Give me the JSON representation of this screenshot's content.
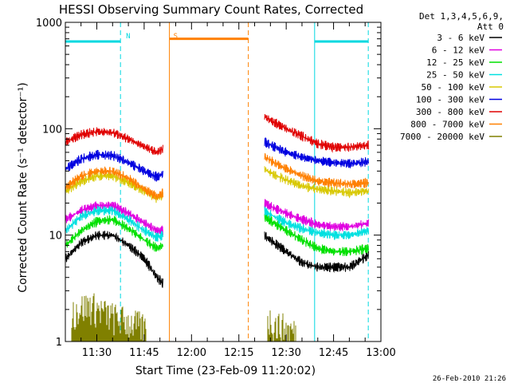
{
  "chart_data": {
    "type": "line",
    "title": "HESSI Observing Summary Count Rates, Corrected",
    "xlabel": "Start Time (23-Feb-09 11:20:02)",
    "ylabel": "Corrected Count Rate (s⁻¹ detector⁻¹)",
    "y_scale": "log",
    "ylim": [
      1,
      1000
    ],
    "xlim": [
      "11:20:02",
      "13:00"
    ],
    "x_ticks": [
      "11:30",
      "11:45",
      "12:00",
      "12:15",
      "12:30",
      "12:45",
      "13:00"
    ],
    "y_ticks": [
      "1",
      "10",
      "100",
      "1000"
    ],
    "timestamp": "26-Feb-2010 21:26",
    "legend": {
      "placement": "right",
      "header": [
        "Det 1,3,4,5,6,9,",
        "Att 0"
      ]
    },
    "annotations": [
      {
        "text": "N",
        "time": "11:38",
        "color": "#00d8e0"
      },
      {
        "text": "S",
        "time": "11:53",
        "color": "#ff8000"
      }
    ],
    "bars": [
      {
        "name": "night",
        "color": "#00d8e0",
        "level": 660,
        "intervals": [
          [
            "11:20:02",
            "11:37:30"
          ],
          [
            "12:39",
            "12:56"
          ]
        ]
      },
      {
        "name": "saa",
        "color": "#ff8000",
        "level": 700,
        "intervals": [
          [
            "11:53",
            "12:18"
          ]
        ]
      }
    ],
    "vlines": [
      {
        "time": "11:20:02",
        "color": "#00d8e0",
        "style": "solid"
      },
      {
        "time": "11:37:30",
        "color": "#00d8e0",
        "style": "dash"
      },
      {
        "time": "12:39",
        "color": "#00d8e0",
        "style": "solid"
      },
      {
        "time": "12:56",
        "color": "#00d8e0",
        "style": "dash"
      },
      {
        "time": "11:53",
        "color": "#ff8000",
        "style": "solid"
      },
      {
        "time": "12:18",
        "color": "#ff8000",
        "style": "dash"
      }
    ],
    "series": [
      {
        "name": "3 - 6 keV",
        "color": "#000000",
        "segments": [
          {
            "points": [
              [
                "11:20:02",
                6
              ],
              [
                "11:25",
                8.5
              ],
              [
                "11:30",
                10
              ],
              [
                "11:35",
                10
              ],
              [
                "11:40",
                8
              ],
              [
                "11:45",
                6
              ],
              [
                "11:49",
                4
              ],
              [
                "11:51",
                3.5
              ]
            ]
          },
          {
            "points": [
              [
                "12:23",
                10
              ],
              [
                "12:26",
                8.5
              ],
              [
                "12:30",
                7
              ],
              [
                "12:35",
                5.5
              ],
              [
                "12:40",
                5
              ],
              [
                "12:45",
                5
              ],
              [
                "12:50",
                5
              ],
              [
                "12:56",
                6.5
              ]
            ]
          }
        ]
      },
      {
        "name": "6 - 12 keV",
        "color": "#e000e0",
        "segments": [
          {
            "points": [
              [
                "11:20:02",
                14
              ],
              [
                "11:25",
                17
              ],
              [
                "11:30",
                19
              ],
              [
                "11:35",
                19
              ],
              [
                "11:40",
                16
              ],
              [
                "11:45",
                13
              ],
              [
                "11:49",
                11
              ],
              [
                "11:51",
                11
              ]
            ]
          },
          {
            "points": [
              [
                "12:23",
                20
              ],
              [
                "12:26",
                18
              ],
              [
                "12:30",
                16
              ],
              [
                "12:35",
                14
              ],
              [
                "12:40",
                12.5
              ],
              [
                "12:45",
                12
              ],
              [
                "12:50",
                12
              ],
              [
                "12:56",
                13
              ]
            ]
          }
        ]
      },
      {
        "name": "12 - 25 keV",
        "color": "#00e000",
        "segments": [
          {
            "points": [
              [
                "11:20:02",
                8
              ],
              [
                "11:25",
                11
              ],
              [
                "11:30",
                13.5
              ],
              [
                "11:35",
                14
              ],
              [
                "11:40",
                11.5
              ],
              [
                "11:45",
                9
              ],
              [
                "11:49",
                7.5
              ],
              [
                "11:51",
                8
              ]
            ]
          },
          {
            "points": [
              [
                "12:23",
                15
              ],
              [
                "12:26",
                13
              ],
              [
                "12:30",
                11
              ],
              [
                "12:35",
                9
              ],
              [
                "12:40",
                7.5
              ],
              [
                "12:45",
                7
              ],
              [
                "12:50",
                7
              ],
              [
                "12:56",
                7.5
              ]
            ]
          }
        ]
      },
      {
        "name": "25 - 50 keV",
        "color": "#00e0e0",
        "segments": [
          {
            "points": [
              [
                "11:20:02",
                11
              ],
              [
                "11:25",
                15
              ],
              [
                "11:30",
                17
              ],
              [
                "11:35",
                17
              ],
              [
                "11:40",
                14
              ],
              [
                "11:45",
                11
              ],
              [
                "11:49",
                9.5
              ],
              [
                "11:51",
                10
              ]
            ]
          },
          {
            "points": [
              [
                "12:23",
                17
              ],
              [
                "12:26",
                15
              ],
              [
                "12:30",
                13
              ],
              [
                "12:35",
                11.5
              ],
              [
                "12:40",
                10.5
              ],
              [
                "12:45",
                10
              ],
              [
                "12:50",
                10
              ],
              [
                "12:56",
                11
              ]
            ]
          }
        ]
      },
      {
        "name": "50 - 100 keV",
        "color": "#d8c800",
        "segments": [
          {
            "points": [
              [
                "11:20:02",
                26
              ],
              [
                "11:25",
                32
              ],
              [
                "11:30",
                36
              ],
              [
                "11:35",
                36
              ],
              [
                "11:40",
                31
              ],
              [
                "11:45",
                26
              ],
              [
                "11:49",
                22
              ],
              [
                "11:51",
                24
              ]
            ]
          },
          {
            "points": [
              [
                "12:23",
                42
              ],
              [
                "12:26",
                37
              ],
              [
                "12:30",
                33
              ],
              [
                "12:35",
                29
              ],
              [
                "12:40",
                27
              ],
              [
                "12:45",
                26
              ],
              [
                "12:50",
                25
              ],
              [
                "12:56",
                26
              ]
            ]
          }
        ]
      },
      {
        "name": "100 - 300 keV",
        "color": "#0000e0",
        "segments": [
          {
            "points": [
              [
                "11:20:02",
                42
              ],
              [
                "11:25",
                52
              ],
              [
                "11:30",
                57
              ],
              [
                "11:35",
                56
              ],
              [
                "11:40",
                48
              ],
              [
                "11:45",
                40
              ],
              [
                "11:49",
                35
              ],
              [
                "11:51",
                38
              ]
            ]
          },
          {
            "points": [
              [
                "12:23",
                75
              ],
              [
                "12:26",
                68
              ],
              [
                "12:30",
                60
              ],
              [
                "12:35",
                54
              ],
              [
                "12:40",
                50
              ],
              [
                "12:45",
                48
              ],
              [
                "12:50",
                47
              ],
              [
                "12:56",
                49
              ]
            ]
          }
        ]
      },
      {
        "name": "300 - 800 keV",
        "color": "#e00000",
        "segments": [
          {
            "points": [
              [
                "11:20:02",
                75
              ],
              [
                "11:25",
                88
              ],
              [
                "11:30",
                94
              ],
              [
                "11:35",
                92
              ],
              [
                "11:40",
                80
              ],
              [
                "11:45",
                68
              ],
              [
                "11:49",
                60
              ],
              [
                "11:51",
                65
              ]
            ]
          },
          {
            "points": [
              [
                "12:23",
                130
              ],
              [
                "12:26",
                115
              ],
              [
                "12:30",
                100
              ],
              [
                "12:35",
                85
              ],
              [
                "12:40",
                72
              ],
              [
                "12:45",
                67
              ],
              [
                "12:50",
                67
              ],
              [
                "12:56",
                70
              ]
            ]
          }
        ]
      },
      {
        "name": "800 - 7000 keV",
        "color": "#ff8000",
        "segments": [
          {
            "points": [
              [
                "11:20:02",
                28
              ],
              [
                "11:25",
                36
              ],
              [
                "11:30",
                40
              ],
              [
                "11:35",
                40
              ],
              [
                "11:40",
                34
              ],
              [
                "11:45",
                27
              ],
              [
                "11:49",
                23
              ],
              [
                "11:51",
                25
              ]
            ]
          },
          {
            "points": [
              [
                "12:23",
                55
              ],
              [
                "12:26",
                48
              ],
              [
                "12:30",
                42
              ],
              [
                "12:35",
                36
              ],
              [
                "12:40",
                32
              ],
              [
                "12:45",
                31
              ],
              [
                "12:50",
                30
              ],
              [
                "12:56",
                31
              ]
            ]
          }
        ]
      },
      {
        "name": "7000 - 20000 keV",
        "color": "#808000",
        "segments": [
          {
            "points": [
              [
                "11:22",
                1.7
              ],
              [
                "11:25",
                1.9
              ],
              [
                "11:28",
                2.0
              ],
              [
                "11:31",
                1.8
              ],
              [
                "11:34",
                1.6
              ],
              [
                "11:37",
                1.5
              ],
              [
                "11:40",
                1.4
              ],
              [
                "11:43",
                1.3
              ],
              [
                "11:46",
                1.2
              ]
            ]
          },
          {
            "points": [
              [
                "12:24",
                1.5
              ],
              [
                "12:27",
                1.3
              ],
              [
                "12:30",
                1.2
              ],
              [
                "12:33",
                1.1
              ]
            ]
          }
        ]
      }
    ]
  }
}
